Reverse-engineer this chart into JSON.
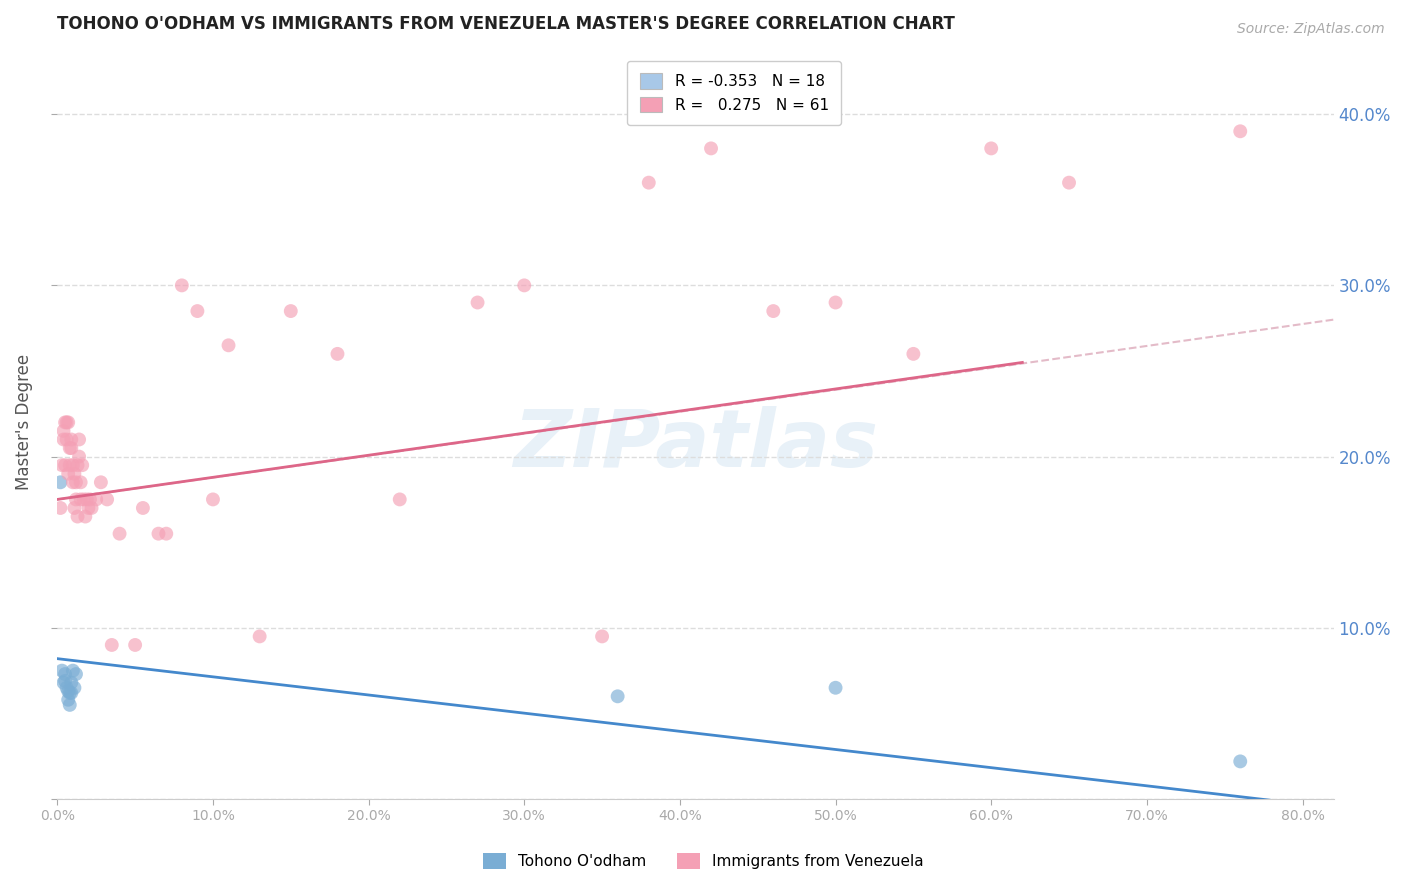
{
  "title": "TOHONO O'ODHAM VS IMMIGRANTS FROM VENEZUELA MASTER'S DEGREE CORRELATION CHART",
  "source": "Source: ZipAtlas.com",
  "ylabel": "Master's Degree",
  "xlim": [
    0.0,
    0.82
  ],
  "ylim": [
    0.0,
    0.44
  ],
  "yticks": [
    0.0,
    0.1,
    0.2,
    0.3,
    0.4
  ],
  "xticks": [
    0.0,
    0.1,
    0.2,
    0.3,
    0.4,
    0.5,
    0.6,
    0.7,
    0.8
  ],
  "background_color": "#ffffff",
  "grid_color": "#dddddd",
  "legend_entries": [
    {
      "label": "R = -0.353   N = 18",
      "color": "#a8c8e8"
    },
    {
      "label": "R =   0.275   N = 61",
      "color": "#f4a0b5"
    }
  ],
  "series1_color": "#7aadd4",
  "series2_color": "#f4a0b5",
  "trendline1_color": "#4488cc",
  "trendline2_color": "#dd6688",
  "trendline2_dashed_color": "#ddaabb",
  "right_axis_color": "#5588cc",
  "right_ytick_labels": [
    "40.0%",
    "30.0%",
    "20.0%",
    "10.0%"
  ],
  "right_ytick_vals": [
    0.4,
    0.3,
    0.2,
    0.1
  ],
  "tohono_x": [
    0.002,
    0.003,
    0.004,
    0.005,
    0.005,
    0.006,
    0.007,
    0.007,
    0.008,
    0.008,
    0.009,
    0.009,
    0.01,
    0.011,
    0.012,
    0.36,
    0.5,
    0.76
  ],
  "tohono_y": [
    0.185,
    0.075,
    0.068,
    0.073,
    0.069,
    0.065,
    0.063,
    0.058,
    0.062,
    0.055,
    0.068,
    0.062,
    0.075,
    0.065,
    0.073,
    0.06,
    0.065,
    0.022
  ],
  "venezuela_x": [
    0.002,
    0.003,
    0.004,
    0.004,
    0.005,
    0.005,
    0.006,
    0.006,
    0.007,
    0.007,
    0.008,
    0.008,
    0.009,
    0.009,
    0.01,
    0.01,
    0.011,
    0.011,
    0.012,
    0.012,
    0.013,
    0.013,
    0.014,
    0.014,
    0.015,
    0.015,
    0.016,
    0.017,
    0.018,
    0.019,
    0.02,
    0.021,
    0.022,
    0.025,
    0.028,
    0.032,
    0.035,
    0.04,
    0.05,
    0.055,
    0.065,
    0.07,
    0.08,
    0.09,
    0.1,
    0.11,
    0.13,
    0.15,
    0.18,
    0.22,
    0.27,
    0.3,
    0.35,
    0.38,
    0.42,
    0.46,
    0.5,
    0.55,
    0.6,
    0.65,
    0.76
  ],
  "venezuela_y": [
    0.17,
    0.195,
    0.21,
    0.215,
    0.22,
    0.195,
    0.21,
    0.22,
    0.19,
    0.22,
    0.205,
    0.195,
    0.205,
    0.21,
    0.185,
    0.195,
    0.17,
    0.19,
    0.175,
    0.185,
    0.165,
    0.195,
    0.2,
    0.21,
    0.175,
    0.185,
    0.195,
    0.175,
    0.165,
    0.175,
    0.17,
    0.175,
    0.17,
    0.175,
    0.185,
    0.175,
    0.09,
    0.155,
    0.09,
    0.17,
    0.155,
    0.155,
    0.3,
    0.285,
    0.175,
    0.265,
    0.095,
    0.285,
    0.26,
    0.175,
    0.29,
    0.3,
    0.095,
    0.36,
    0.38,
    0.285,
    0.29,
    0.26,
    0.38,
    0.36,
    0.39
  ]
}
